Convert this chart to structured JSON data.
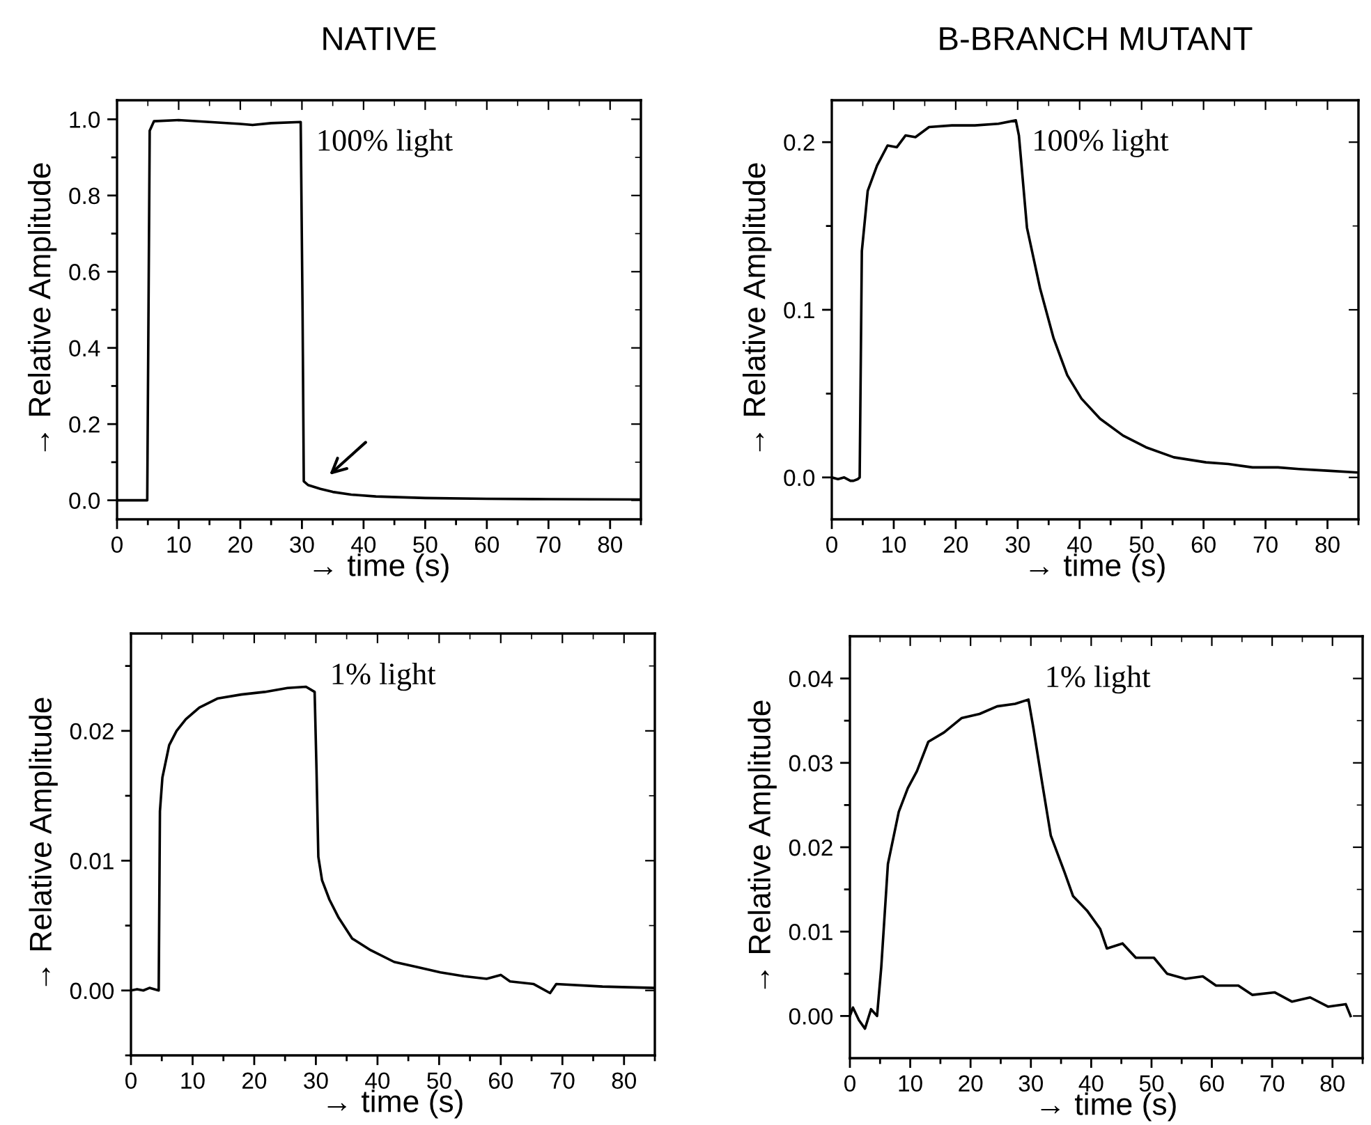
{
  "chart_data": [
    {
      "type": "line",
      "title": "NATIVE",
      "xlabel": "→ time (s)",
      "ylabel": "→ Relative Amplitude",
      "annotations": [
        "100% light"
      ],
      "xlim": [
        0,
        85
      ],
      "ylim": [
        -0.05,
        1.05
      ],
      "xticks": [
        0,
        {
          "value": 5,
          "label": null
        },
        10,
        {
          "value": 15,
          "label": null
        },
        20,
        {
          "value": 25,
          "label": null
        },
        30,
        {
          "value": 35,
          "label": null
        },
        40,
        {
          "value": 45,
          "label": null
        },
        50,
        {
          "value": 55,
          "label": null
        },
        60,
        {
          "value": 65,
          "label": null
        },
        70,
        {
          "value": 75,
          "label": null
        },
        80,
        {
          "value": 85,
          "label": null
        }
      ],
      "yticks": [
        {
          "value": 0,
          "label": "0.0"
        },
        {
          "value": 0.1,
          "label": null
        },
        0.2,
        {
          "value": 0.3,
          "label": null
        },
        0.4,
        {
          "value": 0.5,
          "label": null
        },
        0.6,
        {
          "value": 0.7,
          "label": null
        },
        0.8,
        {
          "value": 0.9,
          "label": null
        },
        {
          "value": 1,
          "label": "1.0"
        }
      ],
      "grid": false,
      "legend": false,
      "marker": "none",
      "line_style": "solid",
      "series": [
        {
          "color": "#000000",
          "x": [
            0,
            2,
            4,
            4.9,
            5.3,
            6,
            10,
            15,
            20,
            22,
            25,
            29.8,
            30.1,
            30.3,
            31,
            33,
            35,
            38,
            42,
            50,
            60,
            70,
            85
          ],
          "values": [
            0,
            0,
            0,
            0,
            0.97,
            0.995,
            0.998,
            0.993,
            0.988,
            0.985,
            0.99,
            0.993,
            0.5,
            0.05,
            0.04,
            0.03,
            0.022,
            0.015,
            0.01,
            0.006,
            0.004,
            0.003,
            0.002
          ]
        }
      ]
    },
    {
      "type": "line",
      "title": "B-BRANCH MUTANT",
      "xlabel": "→ time (s)",
      "ylabel": "→ Relative Amplitude",
      "annotations": [
        "100% light"
      ],
      "xlim": [
        0,
        85
      ],
      "ylim": [
        -0.025,
        0.225
      ],
      "xticks": [
        0,
        {
          "value": 5,
          "label": null
        },
        10,
        {
          "value": 15,
          "label": null
        },
        20,
        {
          "value": 25,
          "label": null
        },
        30,
        {
          "value": 35,
          "label": null
        },
        40,
        {
          "value": 45,
          "label": null
        },
        50,
        {
          "value": 55,
          "label": null
        },
        60,
        {
          "value": 65,
          "label": null
        },
        70,
        {
          "value": 75,
          "label": null
        },
        80,
        {
          "value": 85,
          "label": null
        }
      ],
      "yticks": [
        {
          "value": 0,
          "label": "0.0"
        },
        {
          "value": 0.05,
          "label": null
        },
        0.1,
        {
          "value": 0.15,
          "label": null
        },
        0.2
      ],
      "grid": false,
      "legend": false,
      "marker": "none",
      "line_style": "solid",
      "series": [
        {
          "color": "#000000",
          "x": [
            0,
            1,
            2,
            3,
            3.5,
            4.2,
            4.5,
            4.85,
            5.8,
            7.3,
            9,
            10.5,
            11.9,
            13.5,
            15.7,
            19.4,
            23.1,
            26.9,
            29.7,
            30.2,
            31.5,
            33.6,
            35.8,
            38,
            40.3,
            43.3,
            47,
            50.7,
            55.2,
            60.4,
            64,
            67.9,
            72,
            75.4,
            80,
            84.7
          ],
          "values": [
            0,
            -0.001,
            0,
            -0.002,
            -0.002,
            -0.001,
            0,
            0.135,
            0.171,
            0.186,
            0.198,
            0.197,
            0.204,
            0.203,
            0.209,
            0.21,
            0.21,
            0.211,
            0.213,
            0.204,
            0.149,
            0.113,
            0.083,
            0.061,
            0.047,
            0.035,
            0.025,
            0.018,
            0.012,
            0.009,
            0.008,
            0.006,
            0.006,
            0.005,
            0.004,
            0.003
          ]
        }
      ]
    },
    {
      "type": "line",
      "xlabel": "→ time (s)",
      "ylabel": "→ Relative Amplitude",
      "annotations": [
        "1% light"
      ],
      "xlim": [
        0,
        85
      ],
      "ylim": [
        -0.005,
        0.0275
      ],
      "xticks": [
        0,
        {
          "value": 5,
          "label": null
        },
        10,
        {
          "value": 15,
          "label": null
        },
        20,
        {
          "value": 25,
          "label": null
        },
        30,
        {
          "value": 35,
          "label": null
        },
        40,
        {
          "value": 45,
          "label": null
        },
        50,
        {
          "value": 55,
          "label": null
        },
        60,
        {
          "value": 65,
          "label": null
        },
        70,
        {
          "value": 75,
          "label": null
        },
        80,
        {
          "value": 85,
          "label": null
        }
      ],
      "yticks": [
        {
          "value": -0.005,
          "label": null
        },
        {
          "value": 0,
          "label": "0.00"
        },
        {
          "value": 0.005,
          "label": null
        },
        0.01,
        {
          "value": 0.015,
          "label": null
        },
        0.02,
        {
          "value": 0.025,
          "label": null
        }
      ],
      "grid": false,
      "legend": false,
      "marker": "none",
      "line_style": "solid",
      "series": [
        {
          "color": "#000000",
          "x": [
            0,
            1,
            2,
            3,
            4.5,
            4.7,
            5.1,
            6.2,
            7.4,
            8.9,
            11.1,
            14.1,
            17.9,
            21.7,
            25.4,
            28.4,
            29.8,
            30.1,
            30.4,
            31,
            32.2,
            33.7,
            35.9,
            38.9,
            42.7,
            46.5,
            50.2,
            54,
            57.7,
            60,
            61.5,
            65.3,
            68,
            69,
            76.5,
            84.8
          ],
          "values": [
            0,
            0.0001,
            0,
            0.0002,
            0,
            0.0138,
            0.0164,
            0.0189,
            0.02,
            0.0209,
            0.0218,
            0.0225,
            0.0228,
            0.023,
            0.0233,
            0.0234,
            0.023,
            0.0171,
            0.0103,
            0.0085,
            0.007,
            0.0056,
            0.004,
            0.0031,
            0.0022,
            0.0018,
            0.0014,
            0.0011,
            0.0009,
            0.0012,
            0.0007,
            0.0005,
            -0.0002,
            0.0005,
            0.0003,
            0.0002
          ]
        }
      ]
    },
    {
      "type": "line",
      "xlabel": "→ time (s)",
      "ylabel": "→ Relative Amplitude",
      "annotations": [
        "1% light"
      ],
      "xlim": [
        0,
        85
      ],
      "ylim": [
        -0.005,
        0.045
      ],
      "xticks": [
        0,
        {
          "value": 5,
          "label": null
        },
        10,
        {
          "value": 15,
          "label": null
        },
        20,
        {
          "value": 25,
          "label": null
        },
        30,
        {
          "value": 35,
          "label": null
        },
        40,
        {
          "value": 45,
          "label": null
        },
        50,
        {
          "value": 55,
          "label": null
        },
        60,
        {
          "value": 65,
          "label": null
        },
        70,
        {
          "value": 75,
          "label": null
        },
        80,
        {
          "value": 85,
          "label": null
        }
      ],
      "yticks": [
        {
          "value": 0,
          "label": "0.00"
        },
        {
          "value": 0.005,
          "label": null
        },
        0.01,
        {
          "value": 0.015,
          "label": null
        },
        0.02,
        {
          "value": 0.025,
          "label": null
        },
        0.03,
        {
          "value": 0.035,
          "label": null
        },
        0.04
      ],
      "grid": false,
      "legend": false,
      "marker": "none",
      "line_style": "solid",
      "series": [
        {
          "color": "#000000",
          "x": [
            0,
            0.5,
            1.5,
            2.5,
            3.5,
            4.5,
            5.2,
            6.3,
            8.1,
            9.6,
            11.1,
            13,
            15.6,
            18.5,
            21.5,
            24.4,
            27.4,
            29.6,
            30.4,
            31.9,
            33.3,
            35.6,
            37,
            39.3,
            41.5,
            42.6,
            45.2,
            47.4,
            50.4,
            52.6,
            55.6,
            58.5,
            60.7,
            64.4,
            66.7,
            70.4,
            73.3,
            76.3,
            79.3,
            82.2,
            83
          ],
          "values": [
            0,
            0.001,
            -0.0005,
            -0.0015,
            0.0008,
            0,
            0.0058,
            0.018,
            0.0242,
            0.027,
            0.029,
            0.0325,
            0.0336,
            0.0353,
            0.0358,
            0.0367,
            0.037,
            0.0375,
            0.0342,
            0.0275,
            0.0214,
            0.017,
            0.0142,
            0.0125,
            0.0103,
            0.008,
            0.0086,
            0.0069,
            0.0069,
            0.005,
            0.0044,
            0.0047,
            0.0036,
            0.0036,
            0.0025,
            0.0028,
            0.0017,
            0.0022,
            0.0011,
            0.0014,
            0
          ]
        }
      ]
    }
  ]
}
